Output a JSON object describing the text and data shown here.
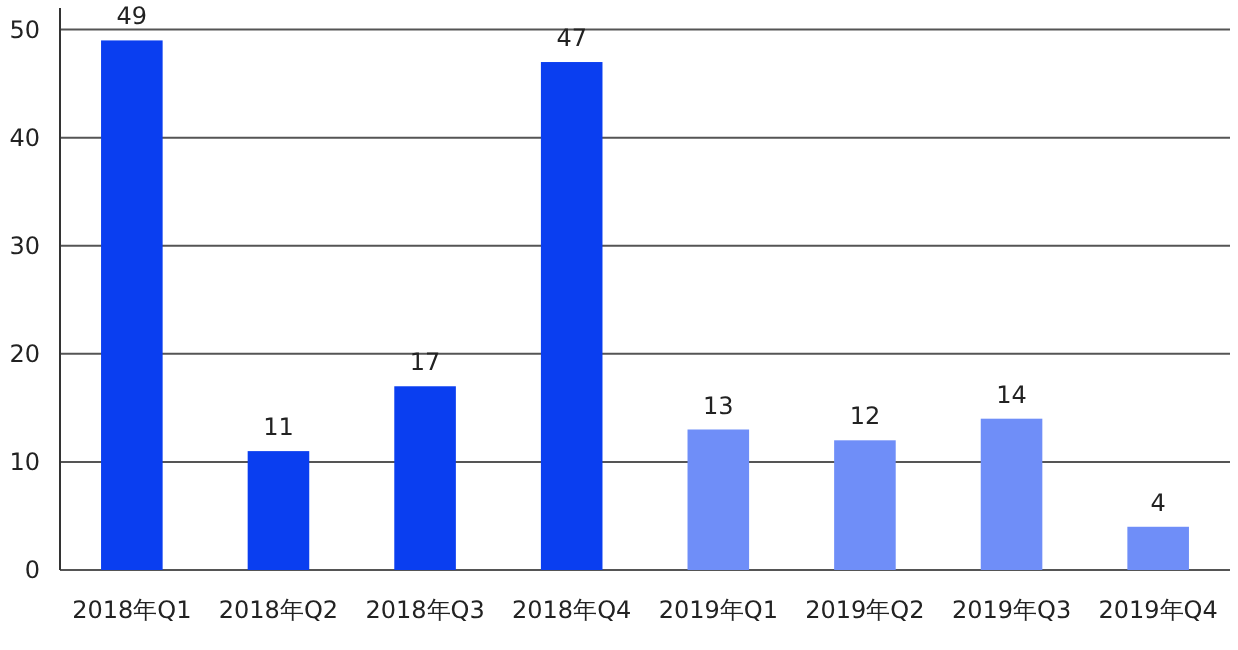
{
  "chart_data": {
    "type": "bar",
    "categories": [
      "2018年Q1",
      "2018年Q2",
      "2018年Q3",
      "2018年Q4",
      "2019年Q1",
      "2019年Q2",
      "2019年Q3",
      "2019年Q4"
    ],
    "values": [
      49,
      11,
      17,
      47,
      13,
      12,
      14,
      4
    ],
    "colors": [
      "#0a3ef0",
      "#0a3ef0",
      "#0a3ef0",
      "#0a3ef0",
      "#6f8ef8",
      "#6f8ef8",
      "#6f8ef8",
      "#6f8ef8"
    ],
    "ylim": [
      0,
      52
    ],
    "yticks": [
      0,
      10,
      20,
      30,
      40,
      50
    ],
    "grid": "y",
    "data_labels": true
  }
}
